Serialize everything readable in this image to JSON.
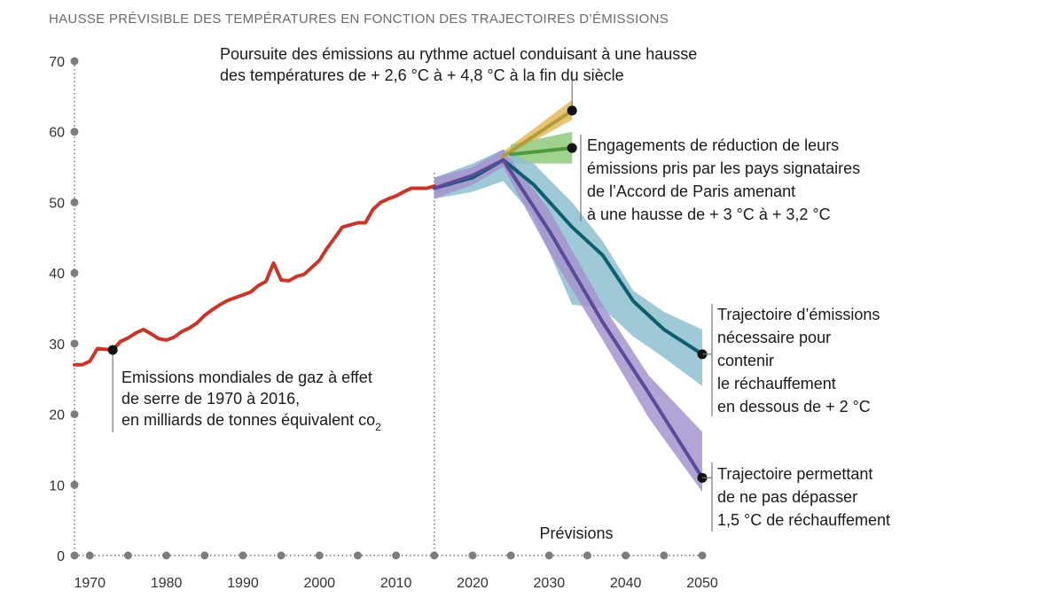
{
  "chart_data": {
    "type": "line",
    "title": "HAUSSE PRÉVISIBLE DES TEMPÉRATURES EN FONCTION DES TRAJECTOIRES D’ÉMISSIONS",
    "xlabel": "",
    "ylabel": "",
    "xlim": [
      1968,
      2050
    ],
    "ylim": [
      0,
      70
    ],
    "x_ticks": [
      1970,
      1980,
      1990,
      2000,
      2010,
      2020,
      2030,
      2040,
      2050
    ],
    "y_ticks": [
      0,
      10,
      20,
      30,
      40,
      50,
      60,
      70
    ],
    "forecast_label": "Prévisions",
    "forecast_start": 2015,
    "series": [
      {
        "name": "historical",
        "color": "#c8352a",
        "x": [
          1968,
          1969,
          1970,
          1971,
          1972,
          1973,
          1974,
          1975,
          1976,
          1977,
          1978,
          1979,
          1980,
          1981,
          1982,
          1983,
          1984,
          1985,
          1986,
          1987,
          1988,
          1989,
          1990,
          1991,
          1992,
          1993,
          1994,
          1995,
          1996,
          1997,
          1998,
          1999,
          2000,
          2001,
          2002,
          2003,
          2004,
          2005,
          2006,
          2007,
          2008,
          2009,
          2010,
          2011,
          2012,
          2013,
          2014,
          2015
        ],
        "y": [
          27,
          27,
          27.5,
          29.3,
          29.2,
          29.1,
          30.3,
          30.8,
          31.5,
          32,
          31.4,
          30.7,
          30.5,
          30.9,
          31.7,
          32.2,
          32.9,
          34,
          34.8,
          35.5,
          36.1,
          36.5,
          36.9,
          37.3,
          38.2,
          38.8,
          41.4,
          39,
          38.9,
          39.5,
          39.8,
          40.8,
          41.8,
          43.5,
          45,
          46.5,
          46.8,
          47.1,
          47.1,
          49,
          50,
          50.5,
          50.9,
          51.5,
          52,
          52,
          52,
          52.3
        ]
      },
      {
        "name": "current-rate",
        "color": "#b39a3a",
        "band_color": "#e2bc5c",
        "x": [
          2024,
          2033
        ],
        "y": [
          56.5,
          63
        ],
        "band_lower": [
          56.3,
          61.7
        ],
        "band_upper": [
          57.2,
          64.5
        ],
        "endpoint": [
          2033,
          63
        ]
      },
      {
        "name": "paris-pledges",
        "color": "#4e9a3e",
        "band_color": "#8fc97a",
        "x": [
          2025,
          2033
        ],
        "y": [
          56.8,
          57.7
        ],
        "band_lower": [
          55.5,
          55.5
        ],
        "band_upper": [
          58.2,
          60
        ],
        "endpoint": [
          2033,
          57.7
        ]
      },
      {
        "name": "below-2C",
        "color": "#0b5e6e",
        "band_color": "#8ec0d0",
        "x": [
          2015,
          2020,
          2024,
          2028,
          2033,
          2037,
          2041,
          2045,
          2050
        ],
        "y": [
          52,
          53.5,
          56,
          52.5,
          46.5,
          42.5,
          36,
          32,
          28.5
        ],
        "band_lower": [
          50.5,
          51.5,
          53,
          48,
          35.5,
          35,
          31,
          28,
          24
        ],
        "band_upper": [
          53.5,
          55.5,
          57.5,
          55.5,
          50,
          44.5,
          37.5,
          34.5,
          32
        ],
        "endpoint": [
          2050,
          28.5
        ]
      },
      {
        "name": "1.5C",
        "color": "#5a4a9a",
        "band_color": "#a594cc",
        "x": [
          2015,
          2020,
          2024,
          2030,
          2037,
          2043,
          2050
        ],
        "y": [
          52,
          53.8,
          56,
          46,
          33,
          23,
          11
        ],
        "band_lower": [
          50.5,
          52.5,
          55,
          43,
          30.5,
          19.5,
          9
        ],
        "band_upper": [
          53.5,
          55,
          57.5,
          49,
          35.5,
          25.5,
          17.5
        ],
        "endpoint": [
          2050,
          11
        ]
      }
    ],
    "annotations": {
      "historical": {
        "point": [
          1973,
          29.1
        ],
        "lines": [
          "Emissions mondiales de gaz à effet",
          "de serre de 1970 à 2016,",
          "en milliards de tonnes équivalent co"
        ],
        "subscript": "2"
      },
      "current_rate": {
        "lines": [
          "Poursuite des émissions au rythme actuel conduisant à une hausse",
          "des températures de + 2,6 °C à + 4,8 °C à la fin du siècle"
        ]
      },
      "paris": {
        "lines": [
          "Engagements de réduction de leurs",
          "émissions pris par les pays signataires",
          "de l’Accord de Paris amenant",
          "à une hausse de + 3 °C à + 3,2 °C"
        ]
      },
      "below_2c": {
        "lines": [
          "Trajectoire d’émissions",
          "nécessaire pour",
          "contenir",
          "le réchauffement",
          "en dessous de + 2 °C"
        ]
      },
      "one_point_five": {
        "lines": [
          "Trajectoire permettant",
          "de ne pas dépasser",
          "1,5 °C de réchauffement"
        ]
      }
    }
  }
}
